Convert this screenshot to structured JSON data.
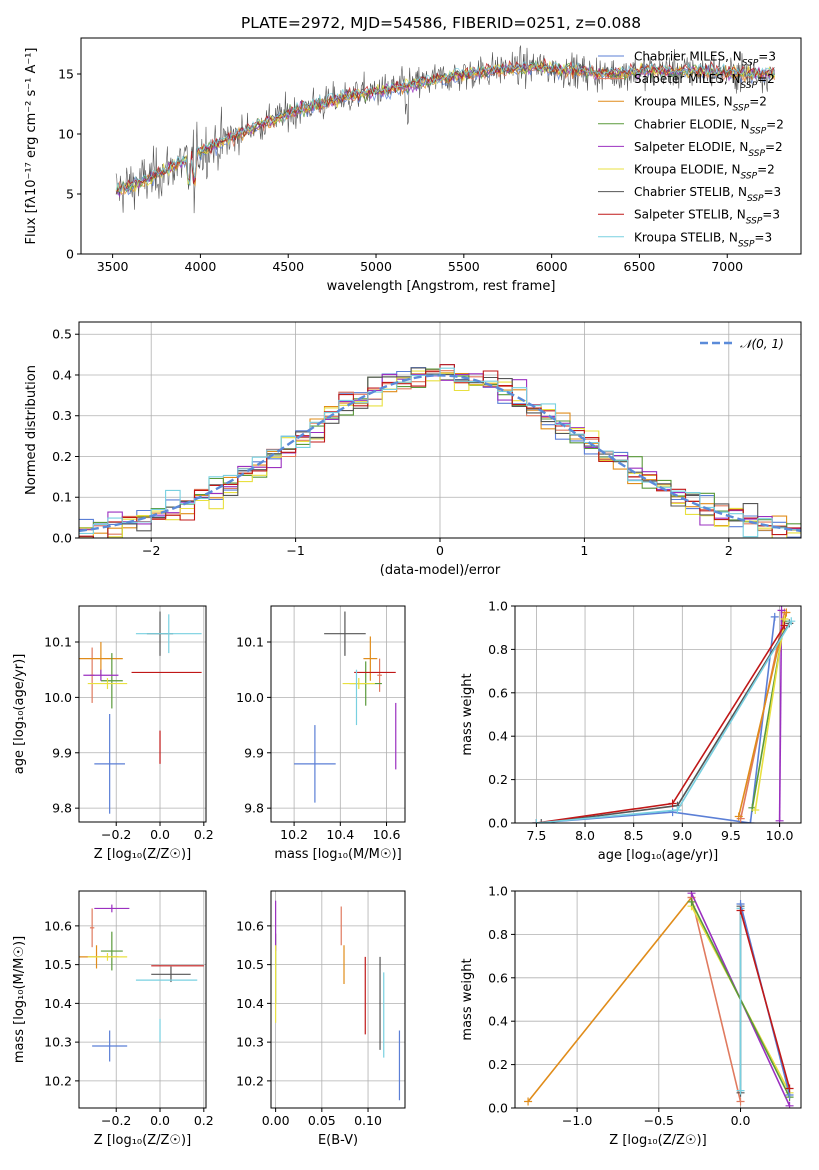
{
  "colors": {
    "Chabrier MILES": "#5b7fd6",
    "Salpeter MILES": "#e07a5f",
    "Kroupa MILES": "#e08c1a",
    "Chabrier ELODIE": "#5a9a3a",
    "Salpeter ELODIE": "#9b30c0",
    "Kroupa ELODIE": "#e8e040",
    "Chabrier STELIB": "#555555",
    "Salpeter STELIB": "#c01818",
    "Kroupa STELIB": "#78d0e0",
    "gaussian": "#5b8bd9",
    "mass_weight_extra": "#e878b8",
    "mass_weight_lime": "#b8e860"
  },
  "chart_data": [
    {
      "id": "spectrum",
      "type": "line",
      "title": "PLATE=2972, MJD=54586, FIBERID=0251, z=0.088",
      "xlabel": "wavelength [Angstrom, rest frame]",
      "ylabel": "Flux [fλ10⁻¹⁷ erg cm⁻² s⁻¹ A⁻¹]",
      "xlim": [
        3320,
        7420
      ],
      "ylim": [
        0,
        18
      ],
      "xticks": [
        3500,
        4000,
        4500,
        5000,
        5500,
        6000,
        6500,
        7000
      ],
      "yticks": [
        0,
        5,
        10,
        15
      ],
      "continuum_x": [
        3500,
        3700,
        4000,
        4300,
        4600,
        4900,
        5100,
        5300,
        5500,
        5700,
        5900,
        6100,
        6300,
        6600,
        6900,
        7200,
        7280
      ],
      "continuum_y": [
        5.2,
        6.2,
        8.5,
        10.6,
        12.2,
        13.3,
        13.8,
        14.4,
        15.0,
        15.4,
        15.6,
        15.3,
        15.0,
        15.3,
        15.2,
        15.0,
        15.0
      ],
      "legend": [
        {
          "label": "Chabrier MILES, N",
          "sub": "SSP",
          "suffix": "=3"
        },
        {
          "label": "Salpeter MILES, N",
          "sub": "SSP",
          "suffix": "=2"
        },
        {
          "label": "Kroupa MILES, N",
          "sub": "SSP",
          "suffix": "=2"
        },
        {
          "label": "Chabrier ELODIE, N",
          "sub": "SSP",
          "suffix": "=2"
        },
        {
          "label": "Salpeter ELODIE, N",
          "sub": "SSP",
          "suffix": "=2"
        },
        {
          "label": "Kroupa ELODIE, N",
          "sub": "SSP",
          "suffix": "=2"
        },
        {
          "label": "Chabrier STELIB, N",
          "sub": "SSP",
          "suffix": "=3"
        },
        {
          "label": "Salpeter STELIB, N",
          "sub": "SSP",
          "suffix": "=3"
        },
        {
          "label": "Kroupa STELIB, N",
          "sub": "SSP",
          "suffix": "=3"
        }
      ],
      "legend_placement": "top-right",
      "grid": false
    },
    {
      "id": "residuals",
      "type": "bar",
      "xlabel": "(data-model)/error",
      "ylabel": "Normed distribution",
      "xlim": [
        -2.5,
        2.5
      ],
      "ylim": [
        0,
        0.53
      ],
      "xticks": [
        -2,
        -1,
        0,
        1,
        2
      ],
      "yticks": [
        0.0,
        0.1,
        0.2,
        0.3,
        0.4,
        0.5
      ],
      "bin_width": 0.1,
      "gaussian_label": "𝒩(0, 1)",
      "legend_placement": "top-right",
      "grid": true
    },
    {
      "id": "age_vs_Z",
      "type": "scatter",
      "xlabel": "Z [log₁₀(Z/Z☉)]",
      "ylabel": "age  [log₁₀(age/yr)]",
      "xlim": [
        -0.37,
        0.21
      ],
      "ylim": [
        9.775,
        10.165
      ],
      "xticks": [
        -0.2,
        0.0,
        0.2
      ],
      "yticks": [
        9.8,
        9.9,
        10.0,
        10.1
      ],
      "points": [
        {
          "model": "Chabrier MILES",
          "x": -0.23,
          "y": 9.88,
          "xerr": 0.07,
          "yerr": 0.09
        },
        {
          "model": "Salpeter MILES",
          "x": -0.31,
          "y": 10.04,
          "xerr": 0.01,
          "yerr": 0.05
        },
        {
          "model": "Kroupa MILES",
          "x": -0.27,
          "y": 10.07,
          "xerr": 0.1,
          "yerr": 0.03
        },
        {
          "model": "Chabrier ELODIE",
          "x": -0.22,
          "y": 10.03,
          "xerr": 0.05,
          "yerr": 0.05
        },
        {
          "model": "Salpeter ELODIE",
          "x": -0.27,
          "y": 10.04,
          "xerr": 0.08,
          "yerr": 0.01
        },
        {
          "model": "Kroupa ELODIE",
          "x": -0.24,
          "y": 10.025,
          "xerr": 0.09,
          "yerr": 0.01
        },
        {
          "model": "Chabrier STELIB",
          "x": 0.0,
          "y": 10.115,
          "xerr": 0.06,
          "yerr": 0.04
        },
        {
          "model": "Salpeter STELIB",
          "x": 0.0,
          "y": 9.91,
          "xerr": 0.0,
          "yerr": 0.03
        },
        {
          "model": "Kroupa STELIB",
          "x": 0.04,
          "y": 10.115,
          "xerr": 0.15,
          "yerr": 0.035
        },
        {
          "model": "Salpeter STELIB",
          "x": 0.03,
          "y": 10.045,
          "xerr": 0.16,
          "yerr": 0.0
        }
      ],
      "grid": true
    },
    {
      "id": "age_vs_mass",
      "type": "scatter",
      "xlabel": "mass [log₁₀(M/M☉)]",
      "xlim": [
        10.1,
        10.68
      ],
      "ylim": [
        9.775,
        10.165
      ],
      "xticks": [
        10.2,
        10.4,
        10.6
      ],
      "yticks": [
        9.8,
        9.9,
        10.0,
        10.1
      ],
      "points": [
        {
          "model": "Chabrier MILES",
          "x": 10.29,
          "y": 9.88,
          "xerr": 0.09,
          "yerr": 0.07
        },
        {
          "model": "Salpeter MILES",
          "x": 10.57,
          "y": 10.04,
          "xerr": 0.01,
          "yerr": 0.03
        },
        {
          "model": "Kroupa MILES",
          "x": 10.53,
          "y": 10.07,
          "xerr": 0.03,
          "yerr": 0.04
        },
        {
          "model": "Chabrier ELODIE",
          "x": 10.51,
          "y": 10.025,
          "xerr": 0.07,
          "yerr": 0.04
        },
        {
          "model": "Salpeter ELODIE",
          "x": 10.64,
          "y": 9.93,
          "xerr": 0.0,
          "yerr": 0.06
        },
        {
          "model": "Kroupa ELODIE",
          "x": 10.48,
          "y": 10.025,
          "xerr": 0.07,
          "yerr": 0.01
        },
        {
          "model": "Chabrier STELIB",
          "x": 10.42,
          "y": 10.115,
          "xerr": 0.09,
          "yerr": 0.04
        },
        {
          "model": "Salpeter STELIB",
          "x": 10.55,
          "y": 10.045,
          "xerr": 0.09,
          "yerr": 0.0
        },
        {
          "model": "Kroupa STELIB",
          "x": 10.47,
          "y": 10.0,
          "xerr": 0.0,
          "yerr": 0.05
        }
      ],
      "grid": true
    },
    {
      "id": "mass_weight_vs_age",
      "type": "line",
      "xlabel": "age  [log₁₀(age/yr)]",
      "ylabel": "mass weight",
      "xlim": [
        7.28,
        10.22
      ],
      "ylim": [
        0,
        1.0
      ],
      "xticks": [
        7.5,
        8.0,
        8.5,
        9.0,
        9.5,
        10.0
      ],
      "yticks": [
        0.0,
        0.2,
        0.4,
        0.6,
        0.8,
        1.0
      ],
      "series": [
        {
          "model": "Chabrier MILES",
          "x": [
            7.5,
            8.9,
            9.7,
            9.95
          ],
          "y": [
            0.0,
            0.05,
            0.0,
            0.95
          ]
        },
        {
          "model": "Salpeter MILES",
          "x": [
            9.6,
            10.05
          ],
          "y": [
            0.02,
            0.97
          ]
        },
        {
          "model": "Kroupa MILES",
          "x": [
            9.58,
            10.07
          ],
          "y": [
            0.03,
            0.97
          ]
        },
        {
          "model": "Chabrier ELODIE",
          "x": [
            9.72,
            10.05
          ],
          "y": [
            0.07,
            0.93
          ]
        },
        {
          "model": "Salpeter ELODIE",
          "x": [
            10.0,
            10.02
          ],
          "y": [
            0.01,
            0.98
          ]
        },
        {
          "model": "Kroupa ELODIE",
          "x": [
            9.75,
            10.05
          ],
          "y": [
            0.06,
            0.94
          ]
        },
        {
          "model": "Chabrier STELIB",
          "x": [
            7.55,
            8.95,
            10.1
          ],
          "y": [
            0.0,
            0.08,
            0.92
          ]
        },
        {
          "model": "Salpeter STELIB",
          "x": [
            7.5,
            8.9,
            10.05
          ],
          "y": [
            0.0,
            0.09,
            0.91
          ]
        },
        {
          "model": "Kroupa STELIB",
          "x": [
            7.5,
            8.95,
            10.12
          ],
          "y": [
            0.0,
            0.06,
            0.93
          ]
        }
      ],
      "grid": true
    },
    {
      "id": "mass_vs_Z",
      "type": "scatter",
      "xlabel": "Z [log₁₀(Z/Z☉)]",
      "ylabel": "mass [log₁₀(M/M☉)]",
      "xlim": [
        -0.37,
        0.21
      ],
      "ylim": [
        10.13,
        10.69
      ],
      "xticks": [
        -0.2,
        0.0,
        0.2
      ],
      "yticks": [
        10.2,
        10.3,
        10.4,
        10.5,
        10.6
      ],
      "points": [
        {
          "model": "Chabrier MILES",
          "x": -0.23,
          "y": 10.29,
          "xerr": 0.08,
          "yerr": 0.04
        },
        {
          "model": "Salpeter MILES",
          "x": -0.31,
          "y": 10.595,
          "xerr": 0.01,
          "yerr": 0.05
        },
        {
          "model": "Kroupa MILES",
          "x": -0.29,
          "y": 10.52,
          "xerr": 0.1,
          "yerr": 0.03
        },
        {
          "model": "Chabrier ELODIE",
          "x": -0.22,
          "y": 10.535,
          "xerr": 0.05,
          "yerr": 0.05
        },
        {
          "model": "Salpeter ELODIE",
          "x": -0.22,
          "y": 10.645,
          "xerr": 0.08,
          "yerr": 0.01
        },
        {
          "model": "Kroupa ELODIE",
          "x": -0.24,
          "y": 10.52,
          "xerr": 0.09,
          "yerr": 0.01
        },
        {
          "model": "Chabrier STELIB",
          "x": 0.05,
          "y": 10.475,
          "xerr": 0.09,
          "yerr": 0.02
        },
        {
          "model": "Salpeter STELIB",
          "x": 0.08,
          "y": 10.497,
          "xerr": 0.12,
          "yerr": 0.0
        },
        {
          "model": "Kroupa STELIB",
          "x": 0.03,
          "y": 10.46,
          "xerr": 0.14,
          "yerr": 0.0
        },
        {
          "model": "Kroupa STELIB",
          "x": 0.0,
          "y": 10.33,
          "xerr": 0.0,
          "yerr": 0.03
        }
      ],
      "grid": true
    },
    {
      "id": "mass_vs_EBV",
      "type": "scatter",
      "xlabel": "E(B-V)",
      "xlim": [
        -0.005,
        0.14
      ],
      "ylim": [
        10.13,
        10.69
      ],
      "xticks": [
        0.0,
        0.05,
        0.1
      ],
      "yticks": [
        10.2,
        10.3,
        10.4,
        10.5,
        10.6
      ],
      "points": [
        {
          "model": "Chabrier MILES",
          "x": 0.134,
          "y": 10.24,
          "xerr": 0.0,
          "yerr": 0.09
        },
        {
          "model": "Salpeter MILES",
          "x": 0.071,
          "y": 10.6,
          "xerr": 0.0,
          "yerr": 0.05
        },
        {
          "model": "Kroupa MILES",
          "x": 0.074,
          "y": 10.5,
          "xerr": 0.0,
          "yerr": 0.05
        },
        {
          "model": "Chabrier ELODIE",
          "x": 0.0,
          "y": 10.49,
          "xerr": 0.0,
          "yerr": 0.09
        },
        {
          "model": "Salpeter ELODIE",
          "x": 0.0,
          "y": 10.6,
          "xerr": 0.0,
          "yerr": 0.065
        },
        {
          "model": "Kroupa ELODIE",
          "x": 0.0,
          "y": 10.45,
          "xerr": 0.0,
          "yerr": 0.1
        },
        {
          "model": "Chabrier STELIB",
          "x": 0.113,
          "y": 10.4,
          "xerr": 0.0,
          "yerr": 0.12
        },
        {
          "model": "Salpeter STELIB",
          "x": 0.097,
          "y": 10.42,
          "xerr": 0.0,
          "yerr": 0.1
        },
        {
          "model": "Kroupa STELIB",
          "x": 0.117,
          "y": 10.37,
          "xerr": 0.0,
          "yerr": 0.11
        }
      ],
      "grid": true
    },
    {
      "id": "mass_weight_vs_Z",
      "type": "line",
      "xlabel": "Z [log₁₀(Z/Z☉)]",
      "ylabel": "mass weight",
      "xlim": [
        -1.38,
        0.37
      ],
      "ylim": [
        0,
        1.0
      ],
      "xticks": [
        -1.0,
        -0.5,
        0.0
      ],
      "yticks": [
        0.0,
        0.2,
        0.4,
        0.6,
        0.8,
        1.0
      ],
      "series": [
        {
          "model": "Kroupa MILES",
          "x": [
            -1.3,
            -0.3
          ],
          "y": [
            0.03,
            0.97
          ]
        },
        {
          "model": "Salpeter MILES",
          "x": [
            -0.3,
            0.0
          ],
          "y": [
            0.97,
            0.03
          ]
        },
        {
          "model": "Salpeter ELODIE",
          "x": [
            -0.3,
            0.3
          ],
          "y": [
            0.99,
            0.01
          ]
        },
        {
          "model": "Kroupa ELODIE",
          "x": [
            -0.3,
            0.3
          ],
          "y": [
            0.93,
            0.07
          ]
        },
        {
          "model": "Chabrier ELODIE",
          "x": [
            -0.3,
            0.3
          ],
          "y": [
            0.95,
            0.05
          ]
        },
        {
          "model": "Chabrier STELIB",
          "x": [
            0.0,
            0.0
          ],
          "y": [
            0.07,
            0.93
          ]
        },
        {
          "model": "Kroupa STELIB",
          "x": [
            0.0,
            0.0
          ],
          "y": [
            0.08,
            0.92
          ]
        },
        {
          "model": "Chabrier MILES",
          "x": [
            0.0,
            0.3
          ],
          "y": [
            0.94,
            0.06
          ]
        },
        {
          "model": "Salpeter STELIB",
          "x": [
            0.0,
            0.3
          ],
          "y": [
            0.91,
            0.09
          ]
        }
      ],
      "grid": true
    }
  ]
}
